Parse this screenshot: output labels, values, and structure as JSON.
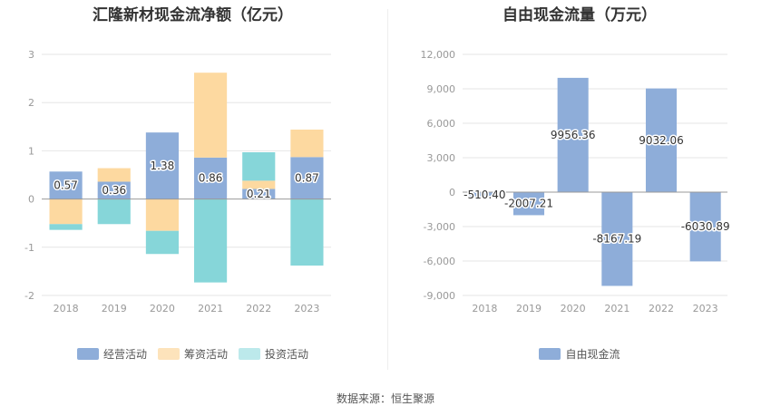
{
  "source": "数据来源：恒生聚源",
  "chart_data": [
    {
      "type": "bar",
      "stacked": true,
      "title": "汇隆新材现金流净额（亿元）",
      "categories": [
        "2018",
        "2019",
        "2020",
        "2021",
        "2022",
        "2023"
      ],
      "yticks": [
        -2,
        -1,
        0,
        1,
        2,
        3
      ],
      "ylim": [
        -2,
        3
      ],
      "series": [
        {
          "name": "经营活动",
          "color": "#8eadd9",
          "values": [
            0.57,
            0.36,
            1.38,
            0.86,
            0.21,
            0.87
          ],
          "labels": [
            "0.57",
            "0.36",
            "1.38",
            "0.86",
            "0.21",
            "0.87"
          ]
        },
        {
          "name": "筹资活动",
          "color": "#fdd9a0",
          "values": [
            -0.52,
            0.28,
            -0.66,
            1.76,
            0.17,
            0.57
          ]
        },
        {
          "name": "投资活动",
          "color": "#86d6d9",
          "values": [
            -0.12,
            -0.52,
            -0.48,
            -1.73,
            0.59,
            -1.38
          ]
        }
      ],
      "legend_colors": [
        "#8eadd9",
        "#fde3bb",
        "#bce9eb"
      ],
      "legend": "bottom"
    },
    {
      "type": "bar",
      "title": "自由现金流量（万元）",
      "categories": [
        "2018",
        "2019",
        "2020",
        "2021",
        "2022",
        "2023"
      ],
      "yticks": [
        -9000,
        -6000,
        -3000,
        0,
        3000,
        6000,
        9000,
        12000
      ],
      "ytick_labels": [
        "-9,000",
        "-6,000",
        "-3,000",
        "0",
        "3,000",
        "6,000",
        "9,000",
        "12,000"
      ],
      "ylim": [
        -9000,
        12000
      ],
      "series": [
        {
          "name": "自由现金流",
          "color": "#8eadd9",
          "values": [
            -510.4,
            -2007.21,
            9956.36,
            -8167.19,
            9032.06,
            -6030.89
          ],
          "labels": [
            "-510.40",
            "-2007.21",
            "9956.36",
            "-8167.19",
            "9032.06",
            "-6030.89"
          ]
        }
      ],
      "legend": "bottom"
    }
  ]
}
